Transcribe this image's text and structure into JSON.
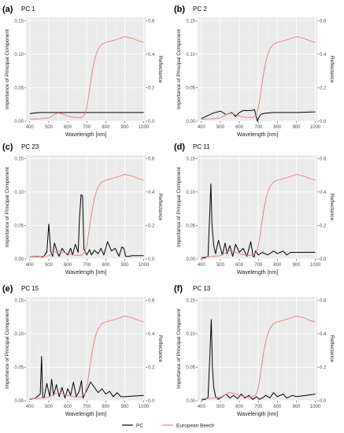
{
  "colors": {
    "pc": "#000000",
    "beech": "#f08080",
    "panel_bg": "#ebebeb",
    "grid_major": "#ffffff",
    "grid_minor": "#f5f5f5"
  },
  "legend": {
    "placement": "bottom",
    "items": [
      {
        "label": "PC",
        "color": "#000000"
      },
      {
        "label": "European Beech",
        "color": "#f08080"
      }
    ]
  },
  "chart_data": [
    {
      "type": "line",
      "panel_tag": "(a)",
      "title": "PC 1",
      "xlabel": "Wavelength [nm]",
      "ylabel": "Importance of Principal Component",
      "ylabel_right": "Reflectance",
      "xlim": [
        380,
        1010
      ],
      "ylim": [
        0,
        0.155
      ],
      "ylim_right": [
        0,
        0.62
      ],
      "xticks": [
        400,
        500,
        600,
        700,
        800,
        900,
        1000
      ],
      "yticks": [
        "0.00",
        "0.05",
        "0.10",
        "0.15"
      ],
      "yticks_right": [
        "0.0",
        "0.2",
        "0.4",
        "0.6"
      ],
      "grid": true,
      "series": [
        {
          "name": "PC",
          "axis": "left",
          "x": [
            400,
            430,
            460,
            500,
            550,
            600,
            650,
            700,
            750,
            800,
            850,
            900,
            950,
            1000
          ],
          "y": [
            0.0115,
            0.0125,
            0.013,
            0.013,
            0.013,
            0.013,
            0.013,
            0.013,
            0.013,
            0.013,
            0.013,
            0.013,
            0.013,
            0.013
          ]
        },
        {
          "name": "European Beech",
          "axis": "right",
          "x": [
            400,
            450,
            500,
            530,
            550,
            580,
            610,
            640,
            670,
            690,
            700,
            710,
            720,
            730,
            740,
            750,
            760,
            780,
            800,
            850,
            900,
            940,
            970,
            1000
          ],
          "y": [
            0.012,
            0.014,
            0.02,
            0.04,
            0.05,
            0.04,
            0.028,
            0.022,
            0.022,
            0.04,
            0.08,
            0.15,
            0.23,
            0.3,
            0.36,
            0.4,
            0.43,
            0.46,
            0.47,
            0.485,
            0.505,
            0.495,
            0.48,
            0.47
          ]
        }
      ]
    },
    {
      "type": "line",
      "panel_tag": "(b)",
      "title": "PC 2",
      "xlabel": "Wavelength [nm]",
      "ylabel": "Importance of Principal Component",
      "ylabel_right": "Reflectance",
      "xlim": [
        380,
        1010
      ],
      "ylim": [
        0,
        0.155
      ],
      "ylim_right": [
        0,
        0.62
      ],
      "xticks": [
        400,
        500,
        600,
        700,
        800,
        900,
        1000
      ],
      "yticks": [
        "0.00",
        "0.05",
        "0.10",
        "0.15"
      ],
      "yticks_right": [
        "0.0",
        "0.2",
        "0.4",
        "0.6"
      ],
      "grid": true,
      "series": [
        {
          "name": "PC",
          "axis": "left",
          "x": [
            400,
            430,
            460,
            500,
            530,
            560,
            580,
            600,
            620,
            640,
            660,
            680,
            690,
            695,
            700,
            710,
            720,
            740,
            780,
            850,
            900,
            1000
          ],
          "y": [
            0.004,
            0.008,
            0.012,
            0.015,
            0.01,
            0.013,
            0.007,
            0.013,
            0.016,
            0.016,
            0.016,
            0.017,
            0.005,
            0.0,
            0.004,
            0.009,
            0.011,
            0.012,
            0.013,
            0.013,
            0.013,
            0.014
          ]
        },
        {
          "name": "European Beech",
          "axis": "right",
          "x": [
            400,
            450,
            500,
            530,
            550,
            580,
            610,
            640,
            670,
            690,
            700,
            710,
            720,
            730,
            740,
            750,
            760,
            780,
            800,
            850,
            900,
            940,
            970,
            1000
          ],
          "y": [
            0.012,
            0.014,
            0.02,
            0.04,
            0.05,
            0.04,
            0.028,
            0.022,
            0.022,
            0.04,
            0.08,
            0.15,
            0.23,
            0.3,
            0.36,
            0.4,
            0.43,
            0.46,
            0.47,
            0.485,
            0.505,
            0.495,
            0.48,
            0.47
          ]
        }
      ]
    },
    {
      "type": "line",
      "panel_tag": "(c)",
      "title": "PC 23",
      "xlabel": "Wavelength [nm]",
      "ylabel": "Importance of Principal Component",
      "ylabel_right": "Reflectance",
      "xlim": [
        380,
        1010
      ],
      "ylim": [
        0,
        0.155
      ],
      "ylim_right": [
        0,
        0.62
      ],
      "xticks": [
        400,
        500,
        600,
        700,
        800,
        900,
        1000
      ],
      "yticks": [
        "0.00",
        "0.05",
        "0.10",
        "0.15"
      ],
      "yticks_right": [
        "0.0",
        "0.2",
        "0.4",
        "0.6"
      ],
      "grid": true,
      "series": [
        {
          "name": "PC",
          "axis": "left",
          "x": [
            400,
            440,
            470,
            490,
            500,
            510,
            520,
            530,
            545,
            555,
            570,
            585,
            600,
            615,
            625,
            640,
            655,
            662,
            670,
            678,
            685,
            700,
            715,
            725,
            740,
            760,
            775,
            790,
            810,
            830,
            850,
            870,
            885,
            895,
            905,
            920,
            940,
            960,
            980,
            1000
          ],
          "y": [
            0.003,
            0.004,
            0.003,
            0.01,
            0.052,
            0.012,
            0.004,
            0.024,
            0.01,
            0.004,
            0.016,
            0.01,
            0.006,
            0.016,
            0.006,
            0.022,
            0.01,
            0.062,
            0.096,
            0.094,
            0.015,
            0.006,
            0.014,
            0.006,
            0.013,
            0.008,
            0.016,
            0.006,
            0.026,
            0.012,
            0.016,
            0.004,
            0.018,
            0.016,
            0.004,
            0.004,
            0.005,
            0.005,
            0.005,
            0.005
          ]
        },
        {
          "name": "European Beech",
          "axis": "right",
          "x": [
            400,
            450,
            500,
            530,
            550,
            580,
            610,
            640,
            670,
            690,
            700,
            710,
            720,
            730,
            740,
            750,
            760,
            780,
            800,
            850,
            900,
            940,
            970,
            1000
          ],
          "y": [
            0.012,
            0.014,
            0.02,
            0.04,
            0.05,
            0.04,
            0.028,
            0.022,
            0.022,
            0.04,
            0.08,
            0.15,
            0.23,
            0.3,
            0.36,
            0.4,
            0.43,
            0.46,
            0.47,
            0.485,
            0.505,
            0.495,
            0.48,
            0.47
          ]
        }
      ]
    },
    {
      "type": "line",
      "panel_tag": "(d)",
      "title": "PC 11",
      "xlabel": "Wavelength [nm]",
      "ylabel": "Importance of Principal Component",
      "ylabel_right": "Reflectance",
      "xlim": [
        380,
        1010
      ],
      "ylim": [
        0,
        0.155
      ],
      "ylim_right": [
        0,
        0.62
      ],
      "xticks": [
        400,
        500,
        600,
        700,
        800,
        900,
        1000
      ],
      "yticks": [
        "0.00",
        "0.05",
        "0.10",
        "0.15"
      ],
      "yticks_right": [
        "0.0",
        "0.2",
        "0.4",
        "0.6"
      ],
      "grid": true,
      "series": [
        {
          "name": "PC",
          "axis": "left",
          "x": [
            400,
            420,
            435,
            443,
            450,
            456,
            465,
            475,
            490,
            510,
            525,
            535,
            550,
            565,
            580,
            600,
            620,
            640,
            660,
            672,
            678,
            685,
            700,
            720,
            750,
            780,
            800,
            830,
            850,
            870,
            900,
            950,
            1000
          ],
          "y": [
            0.001,
            0.002,
            0.004,
            0.06,
            0.112,
            0.05,
            0.02,
            0.008,
            0.028,
            0.006,
            0.024,
            0.008,
            0.02,
            0.004,
            0.022,
            0.01,
            0.016,
            0.004,
            0.026,
            0.004,
            0.003,
            0.012,
            0.006,
            0.01,
            0.006,
            0.012,
            0.008,
            0.012,
            0.006,
            0.01,
            0.01,
            0.01,
            0.01
          ]
        },
        {
          "name": "European Beech",
          "axis": "right",
          "x": [
            400,
            450,
            500,
            530,
            550,
            580,
            610,
            640,
            670,
            690,
            700,
            710,
            720,
            730,
            740,
            750,
            760,
            780,
            800,
            850,
            900,
            940,
            970,
            1000
          ],
          "y": [
            0.012,
            0.014,
            0.02,
            0.04,
            0.05,
            0.04,
            0.028,
            0.022,
            0.022,
            0.04,
            0.08,
            0.15,
            0.23,
            0.3,
            0.36,
            0.4,
            0.43,
            0.46,
            0.47,
            0.485,
            0.505,
            0.495,
            0.48,
            0.47
          ]
        }
      ]
    },
    {
      "type": "line",
      "panel_tag": "(e)",
      "title": "PC 15",
      "xlabel": "Wavelength [nm]",
      "ylabel": "Importance of Principal Component",
      "ylabel_right": "Reflectance",
      "xlim": [
        380,
        1010
      ],
      "ylim": [
        0,
        0.155
      ],
      "ylim_right": [
        0,
        0.62
      ],
      "xticks": [
        400,
        500,
        600,
        700,
        800,
        900,
        1000
      ],
      "yticks": [
        "0.00",
        "0.05",
        "0.10",
        "0.15"
      ],
      "yticks_right": [
        "0.0",
        "0.2",
        "0.4",
        "0.6"
      ],
      "grid": true,
      "series": [
        {
          "name": "PC",
          "axis": "left",
          "x": [
            400,
            430,
            455,
            462,
            468,
            475,
            490,
            505,
            515,
            525,
            540,
            555,
            570,
            585,
            600,
            615,
            630,
            645,
            660,
            672,
            680,
            690,
            705,
            720,
            740,
            760,
            780,
            800,
            820,
            840,
            860,
            880,
            900,
            950,
            1000
          ],
          "y": [
            0.002,
            0.004,
            0.01,
            0.066,
            0.006,
            0.004,
            0.026,
            0.006,
            0.032,
            0.008,
            0.024,
            0.006,
            0.02,
            0.004,
            0.018,
            0.008,
            0.028,
            0.006,
            0.014,
            0.03,
            0.004,
            0.01,
            0.018,
            0.028,
            0.02,
            0.012,
            0.018,
            0.01,
            0.014,
            0.006,
            0.012,
            0.006,
            0.006,
            0.007,
            0.008
          ]
        },
        {
          "name": "European Beech",
          "axis": "right",
          "x": [
            400,
            450,
            500,
            530,
            550,
            580,
            610,
            640,
            670,
            690,
            700,
            710,
            720,
            730,
            740,
            750,
            760,
            780,
            800,
            850,
            900,
            940,
            970,
            1000
          ],
          "y": [
            0.012,
            0.014,
            0.02,
            0.04,
            0.05,
            0.04,
            0.028,
            0.022,
            0.022,
            0.04,
            0.08,
            0.15,
            0.23,
            0.3,
            0.36,
            0.4,
            0.43,
            0.46,
            0.47,
            0.485,
            0.505,
            0.495,
            0.48,
            0.47
          ]
        }
      ]
    },
    {
      "type": "line",
      "panel_tag": "(f)",
      "title": "PC 13",
      "xlabel": "Wavelength [nm]",
      "ylabel": "Importance of Principal Component",
      "ylabel_right": "Reflectance",
      "xlim": [
        380,
        1010
      ],
      "ylim": [
        0,
        0.155
      ],
      "ylim_right": [
        0,
        0.62
      ],
      "xticks": [
        400,
        500,
        600,
        700,
        800,
        900,
        1000
      ],
      "yticks": [
        "0.00",
        "0.05",
        "0.10",
        "0.15"
      ],
      "yticks_right": [
        "0.0",
        "0.2",
        "0.4",
        "0.6"
      ],
      "grid": true,
      "series": [
        {
          "name": "PC",
          "axis": "left",
          "x": [
            400,
            420,
            435,
            445,
            452,
            458,
            465,
            475,
            490,
            510,
            530,
            550,
            570,
            590,
            610,
            630,
            650,
            670,
            690,
            705,
            720,
            740,
            760,
            780,
            800,
            830,
            850,
            880,
            900,
            950,
            1000
          ],
          "y": [
            0.001,
            0.002,
            0.005,
            0.07,
            0.121,
            0.05,
            0.02,
            0.006,
            0.002,
            0.006,
            0.01,
            0.004,
            0.008,
            0.003,
            0.01,
            0.004,
            0.008,
            0.002,
            0.006,
            0.002,
            0.004,
            0.008,
            0.004,
            0.012,
            0.006,
            0.01,
            0.004,
            0.008,
            0.006,
            0.008,
            0.01
          ]
        },
        {
          "name": "European Beech",
          "axis": "right",
          "x": [
            400,
            450,
            500,
            530,
            550,
            580,
            610,
            640,
            670,
            690,
            700,
            710,
            720,
            730,
            740,
            750,
            760,
            780,
            800,
            850,
            900,
            940,
            970,
            1000
          ],
          "y": [
            0.012,
            0.014,
            0.02,
            0.04,
            0.05,
            0.04,
            0.028,
            0.022,
            0.022,
            0.04,
            0.08,
            0.15,
            0.23,
            0.3,
            0.36,
            0.4,
            0.43,
            0.46,
            0.47,
            0.485,
            0.505,
            0.495,
            0.48,
            0.47
          ]
        }
      ]
    }
  ]
}
